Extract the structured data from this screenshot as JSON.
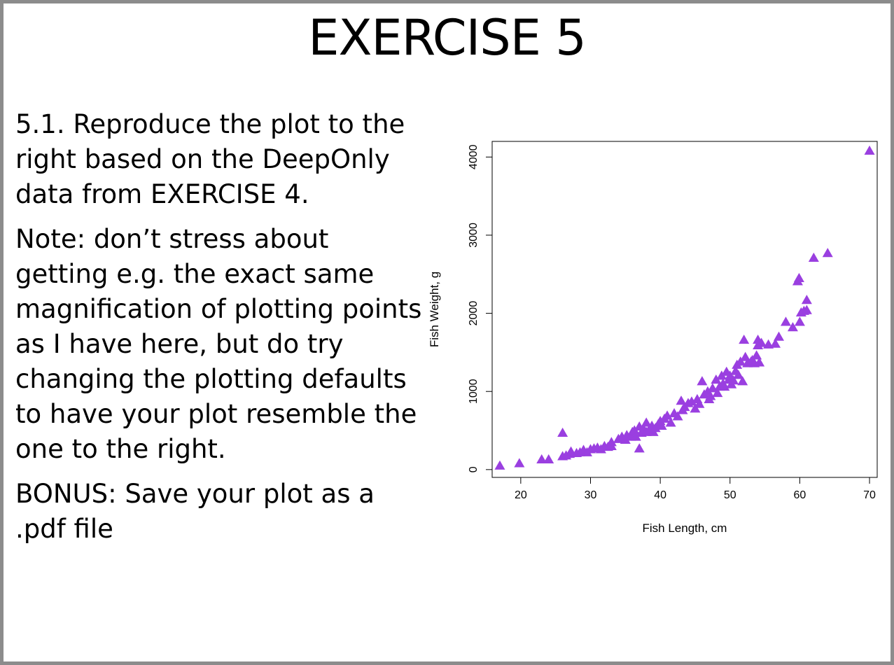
{
  "slide": {
    "title": "EXERCISE 5",
    "paragraphs": [
      "5.1. Reproduce the plot to the right based on the DeepOnly data from EXERCISE 4.",
      "Note: don’t stress about getting e.g. the exact same magnification of plotting points as I have here, but do try changing the plotting defaults to have your plot resemble the one to the right.",
      "BONUS: Save your plot as a .pdf file"
    ]
  },
  "colors": {
    "point": "#9a3fe0",
    "border": "#8c8c8c"
  },
  "chart_data": {
    "type": "scatter",
    "marker": "filled-triangle",
    "xlabel": "Fish Length, cm",
    "ylabel": "Fish Weight, g",
    "xlim": [
      15.9,
      71.1
    ],
    "ylim": [
      -100,
      4200
    ],
    "xticks": [
      20,
      30,
      40,
      50,
      60,
      70
    ],
    "yticks": [
      0,
      1000,
      2000,
      3000,
      4000
    ],
    "grid": false,
    "points": [
      [
        17,
        50
      ],
      [
        19.8,
        80
      ],
      [
        23,
        130
      ],
      [
        24,
        130
      ],
      [
        26,
        470
      ],
      [
        26,
        170
      ],
      [
        26.5,
        180
      ],
      [
        27,
        200
      ],
      [
        27.2,
        230
      ],
      [
        28,
        210
      ],
      [
        28.5,
        220
      ],
      [
        29,
        250
      ],
      [
        29.5,
        220
      ],
      [
        30,
        260
      ],
      [
        30.5,
        270
      ],
      [
        31,
        280
      ],
      [
        31.5,
        260
      ],
      [
        32,
        300
      ],
      [
        32.5,
        290
      ],
      [
        33,
        350
      ],
      [
        33,
        300
      ],
      [
        34,
        390
      ],
      [
        34.5,
        420
      ],
      [
        35,
        380
      ],
      [
        35.2,
        440
      ],
      [
        35.8,
        420
      ],
      [
        36,
        480
      ],
      [
        36.3,
        500
      ],
      [
        36.5,
        420
      ],
      [
        37,
        270
      ],
      [
        37,
        550
      ],
      [
        37.3,
        470
      ],
      [
        37.6,
        520
      ],
      [
        38,
        600
      ],
      [
        38,
        480
      ],
      [
        38.4,
        510
      ],
      [
        38.8,
        560
      ],
      [
        39,
        480
      ],
      [
        39.3,
        530
      ],
      [
        39.7,
        580
      ],
      [
        40,
        620
      ],
      [
        40.2,
        560
      ],
      [
        40.6,
        650
      ],
      [
        41,
        690
      ],
      [
        41.5,
        600
      ],
      [
        42,
        720
      ],
      [
        42.5,
        680
      ],
      [
        43,
        880
      ],
      [
        43.2,
        760
      ],
      [
        43.5,
        800
      ],
      [
        44,
        850
      ],
      [
        44.5,
        870
      ],
      [
        45,
        780
      ],
      [
        45.3,
        900
      ],
      [
        45.6,
        840
      ],
      [
        46,
        1130
      ],
      [
        46.3,
        960
      ],
      [
        46.8,
        1000
      ],
      [
        47,
        900
      ],
      [
        47.2,
        940
      ],
      [
        47.5,
        1040
      ],
      [
        48,
        1150
      ],
      [
        48.2,
        980
      ],
      [
        48.5,
        1060
      ],
      [
        48.8,
        1200
      ],
      [
        49,
        1100
      ],
      [
        49.2,
        1060
      ],
      [
        49.5,
        1250
      ],
      [
        49.8,
        1150
      ],
      [
        50,
        1200
      ],
      [
        50.2,
        1090
      ],
      [
        50.5,
        1140
      ],
      [
        50.8,
        1260
      ],
      [
        51,
        1340
      ],
      [
        51.2,
        1210
      ],
      [
        51.5,
        1380
      ],
      [
        51.8,
        1130
      ],
      [
        52,
        1660
      ],
      [
        52.2,
        1440
      ],
      [
        52.5,
        1360
      ],
      [
        53,
        1380
      ],
      [
        53.2,
        1400
      ],
      [
        53.5,
        1360
      ],
      [
        53.8,
        1460
      ],
      [
        54,
        1590
      ],
      [
        54,
        1660
      ],
      [
        54.2,
        1370
      ],
      [
        54.5,
        1620
      ],
      [
        55.5,
        1600
      ],
      [
        56.5,
        1610
      ],
      [
        57,
        1700
      ],
      [
        58,
        1890
      ],
      [
        59,
        1820
      ],
      [
        59.7,
        2410
      ],
      [
        59.9,
        2450
      ],
      [
        60,
        1890
      ],
      [
        60.2,
        2010
      ],
      [
        60.6,
        2030
      ],
      [
        61,
        2170
      ],
      [
        61,
        2040
      ],
      [
        62,
        2710
      ],
      [
        64,
        2770
      ],
      [
        70,
        4080
      ]
    ]
  }
}
